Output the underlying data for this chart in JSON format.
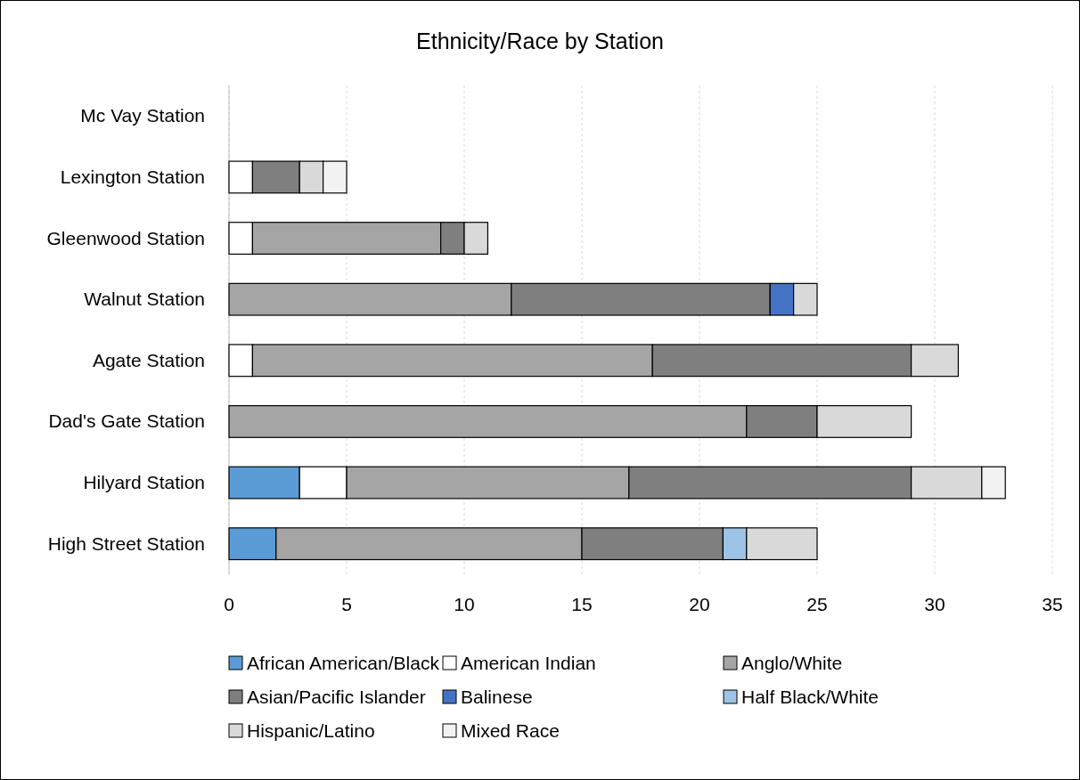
{
  "chart_data": {
    "type": "bar",
    "orientation": "horizontal",
    "stacked": true,
    "title": "Ethnicity/Race by Station",
    "categories": [
      "Mc Vay Station",
      "Lexington Station",
      "Gleenwood Station",
      "Walnut Station",
      "Agate Station",
      "Dad's Gate Station",
      "Hilyard Station",
      "High Street Station"
    ],
    "series": [
      {
        "name": "African American/Black",
        "color": "#5b9bd5",
        "values": [
          0,
          0,
          0,
          0,
          0,
          0,
          3,
          2
        ]
      },
      {
        "name": "American Indian",
        "color": "#ffffff",
        "values": [
          0,
          1,
          1,
          0,
          1,
          0,
          2,
          0
        ]
      },
      {
        "name": "Anglo/White",
        "color": "#a5a5a5",
        "values": [
          0,
          0,
          8,
          12,
          17,
          22,
          12,
          13
        ]
      },
      {
        "name": "Asian/Pacific Islander",
        "color": "#7f7f7f",
        "values": [
          0,
          2,
          1,
          11,
          11,
          3,
          12,
          6
        ]
      },
      {
        "name": "Balinese",
        "color": "#4472c4",
        "values": [
          0,
          0,
          0,
          1,
          0,
          0,
          0,
          0
        ]
      },
      {
        "name": "Half Black/White",
        "color": "#9dc3e6",
        "values": [
          0,
          0,
          0,
          0,
          0,
          0,
          0,
          1
        ]
      },
      {
        "name": "Hispanic/Latino",
        "color": "#d9d9d9",
        "values": [
          0,
          1,
          1,
          1,
          2,
          4,
          3,
          3
        ]
      },
      {
        "name": "Mixed Race",
        "color": "#f2f2f2",
        "values": [
          0,
          1,
          0,
          0,
          0,
          0,
          1,
          0
        ]
      }
    ],
    "xlim": [
      0,
      35
    ],
    "xticks": [
      0,
      5,
      10,
      15,
      20,
      25,
      30,
      35
    ],
    "grid": "x",
    "legend": "bottom"
  }
}
